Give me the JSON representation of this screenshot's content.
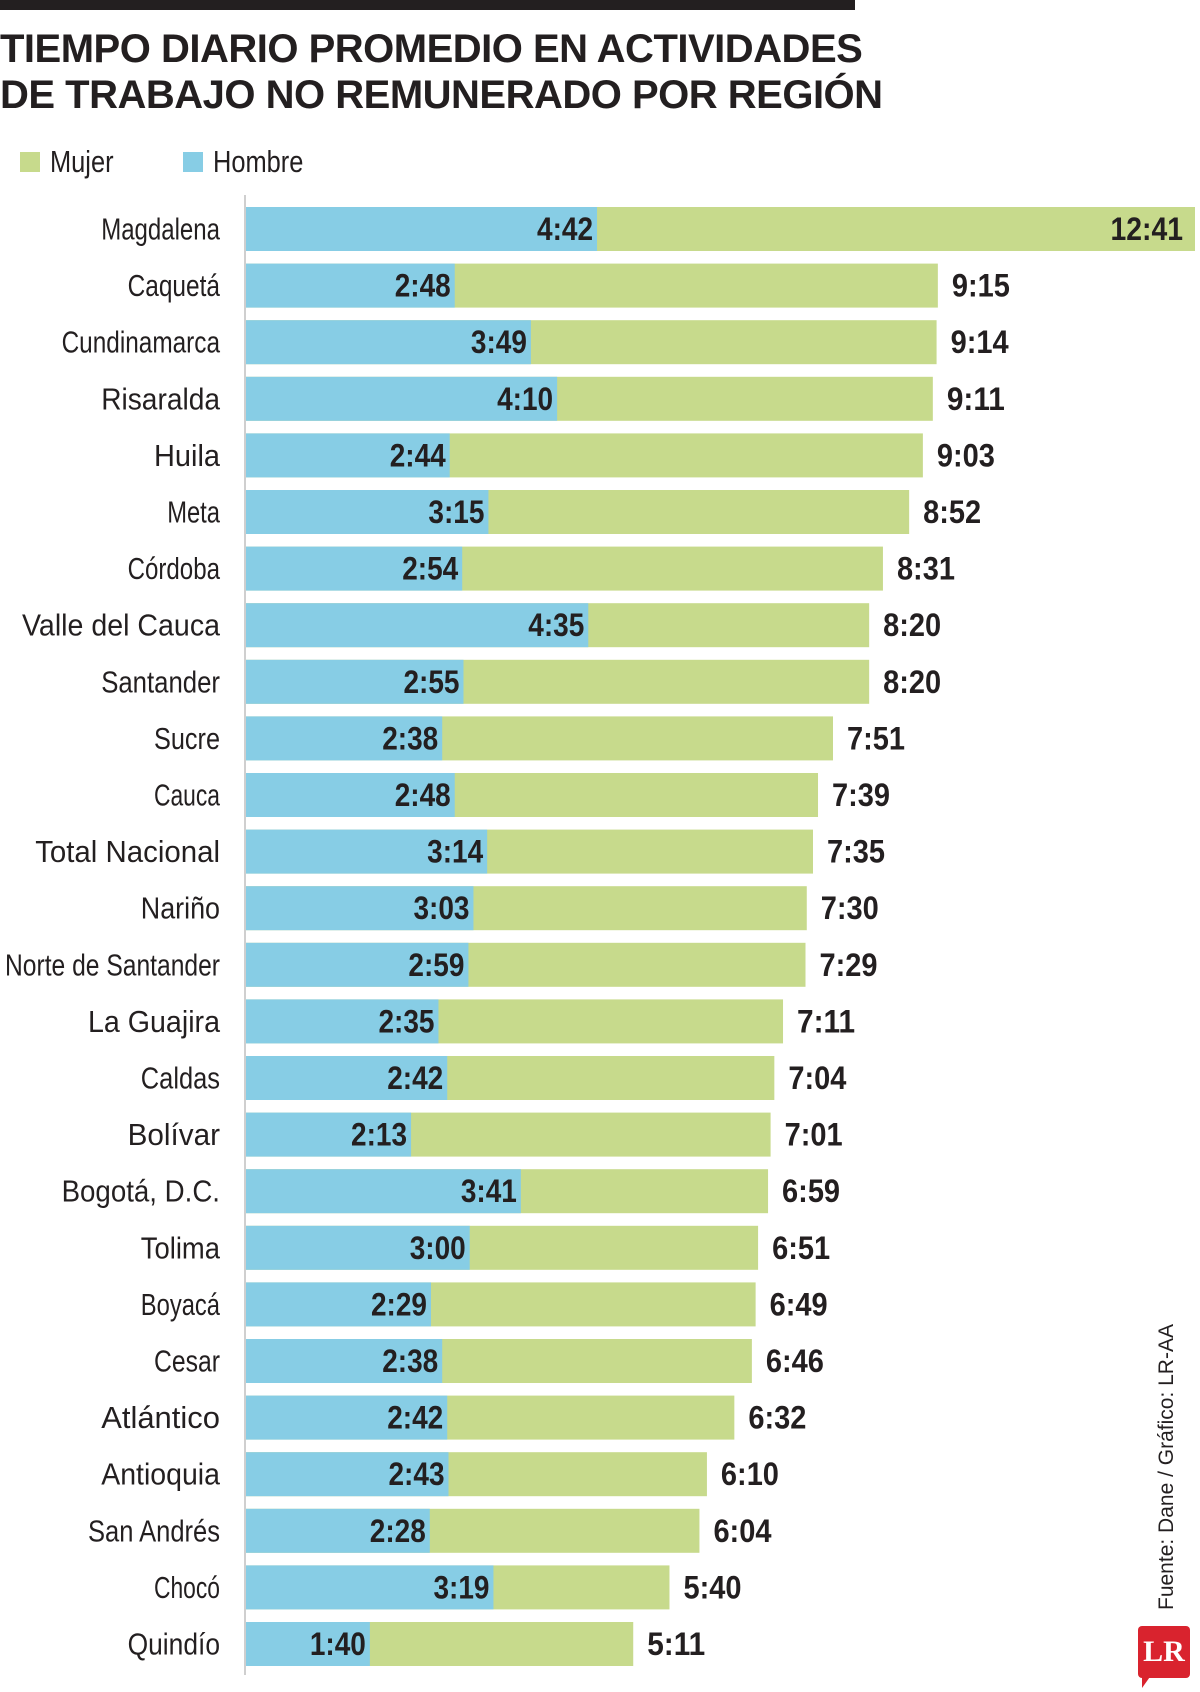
{
  "title": "TIEMPO DIARIO PROMEDIO EN ACTIVIDADES DE TRABAJO NO REMUNERADO POR REGIÓN",
  "legend": {
    "mujer_label": "Mujer",
    "hombre_label": "Hombre"
  },
  "colors": {
    "mujer": "#c7da8c",
    "hombre": "#87cde5",
    "text": "#231f20",
    "logo": "#d9232e"
  },
  "source": "Fuente: Dane / Gráfico: LR-AA",
  "logo_text": "LR",
  "chart_data": {
    "type": "bar",
    "orientation": "horizontal",
    "overlaid": true,
    "value_unit": "horas:minutos por día",
    "xlim": [
      0,
      12.683
    ],
    "categories": [
      "Magdalena",
      "Caquetá",
      "Cundinamarca",
      "Risaralda",
      "Huila",
      "Meta",
      "Córdoba",
      "Valle del Cauca",
      "Santander",
      "Sucre",
      "Cauca",
      "Total Nacional",
      "Nariño",
      "Norte de Santander",
      "La Guajira",
      "Caldas",
      "Bolívar",
      "Bogotá, D.C.",
      "Tolima",
      "Boyacá",
      "Cesar",
      "Atlántico",
      "Antioquia",
      "San Andrés",
      "Chocó",
      "Quindío"
    ],
    "series": [
      {
        "name": "Mujer",
        "labels": [
          "12:41",
          "9:15",
          "9:14",
          "9:11",
          "9:03",
          "8:52",
          "8:31",
          "8:20",
          "8:20",
          "7:51",
          "7:39",
          "7:35",
          "7:30",
          "7:29",
          "7:11",
          "7:04",
          "7:01",
          "6:59",
          "6:51",
          "6:49",
          "6:46",
          "6:32",
          "6:10",
          "6:04",
          "5:40",
          "5:11"
        ],
        "values": [
          12.683,
          9.25,
          9.233,
          9.183,
          9.05,
          8.867,
          8.517,
          8.333,
          8.333,
          7.85,
          7.65,
          7.583,
          7.5,
          7.483,
          7.183,
          7.067,
          7.017,
          6.983,
          6.85,
          6.817,
          6.767,
          6.533,
          6.167,
          6.067,
          5.667,
          5.183
        ]
      },
      {
        "name": "Hombre",
        "labels": [
          "4:42",
          "2:48",
          "3:49",
          "4:10",
          "2:44",
          "3:15",
          "2:54",
          "4:35",
          "2:55",
          "2:38",
          "2:48",
          "3:14",
          "3:03",
          "2:59",
          "2:35",
          "2:42",
          "2:13",
          "3:41",
          "3:00",
          "2:29",
          "2:38",
          "2:42",
          "2:43",
          "2:28",
          "3:19",
          "1:40"
        ],
        "values": [
          4.7,
          2.8,
          3.817,
          4.167,
          2.733,
          3.25,
          2.9,
          4.583,
          2.917,
          2.633,
          2.8,
          3.233,
          3.05,
          2.983,
          2.583,
          2.7,
          2.217,
          3.683,
          3.0,
          2.483,
          2.633,
          2.7,
          2.717,
          2.467,
          3.317,
          1.667
        ]
      }
    ]
  }
}
